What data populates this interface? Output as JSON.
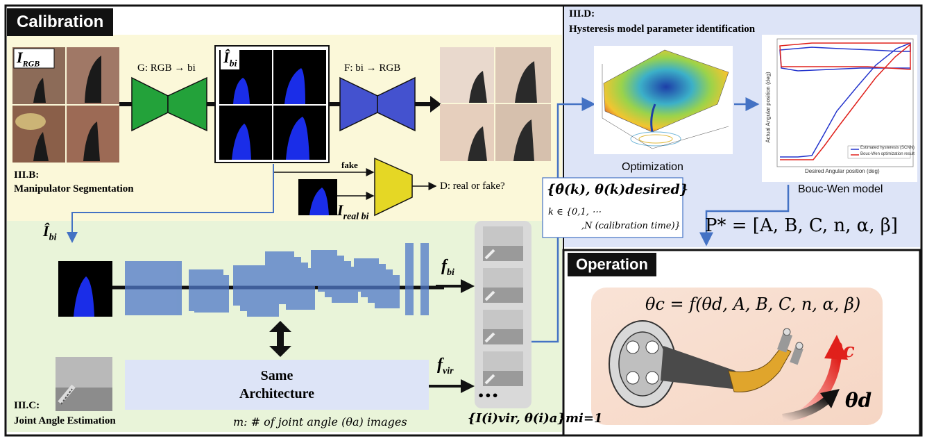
{
  "calibration": {
    "title": "Calibration",
    "img_rgb_label": "I",
    "img_rgb_sub": "RGB",
    "generator_label": "G: RGB → bi",
    "ibi_hat_label": "Î",
    "ibi_hat_sub": "bi",
    "inverse_label": "F: bi → RGB",
    "fake_label": "fake",
    "discriminator_label": "D: real or fake?",
    "real_label": "I",
    "real_sub": "real bi",
    "section_b_title": "III.B:",
    "section_b_name": "Manipulator Segmentation",
    "section_c_title": "III.C:",
    "section_c_name": "Joint Angle Estimation",
    "ibi_hat2_label": "Î",
    "ibi_hat2_sub": "bi",
    "f_bi": "f",
    "f_bi_sub": "bi",
    "f_vir": "f",
    "f_vir_sub": "vir",
    "same_arch_line1": "Same",
    "same_arch_line2": "Architecture",
    "m_note": "m: # of joint angle (θa) images",
    "set_label": "{I(i)vir, θ(i)a}mi=1",
    "ellipsis": "•••"
  },
  "hysteresis": {
    "title_line1": "III.D:",
    "title_line2": "Hysteresis model parameter identification",
    "optimization_label": "Optimization",
    "boucwen_label": "Bouc-Wen model",
    "theta_set_line1": "{θ̂(k), θ(k)desired}",
    "theta_set_line2": "k ∈ {0,1, ⋯",
    "theta_set_line3": ",N (calibration time)}",
    "p_star": "P* = [A, B, C, n, α, β]",
    "plot_xlabel": "Desired Angular position (deg)",
    "plot_ylabel": "Actual Angular position (deg)",
    "plot_legend": [
      "Estimated hysteresis (SCNN)",
      "Bouc-Wen optimization result"
    ]
  },
  "operation": {
    "title": "Operation",
    "formula": "θc = f(θd, A, B, C, n, α, β)",
    "theta_c": "θc",
    "theta_d": "θd"
  },
  "colors": {
    "calib_bg": "#fbf8d9",
    "joint_bg": "#e9f4d9",
    "hyst_bg": "#dde4f7",
    "generator": "#23a23a",
    "inverse": "#4452cf",
    "disc": "#e5d725",
    "arrow_blue": "#4472c4",
    "theta_c": "#e0201b"
  }
}
